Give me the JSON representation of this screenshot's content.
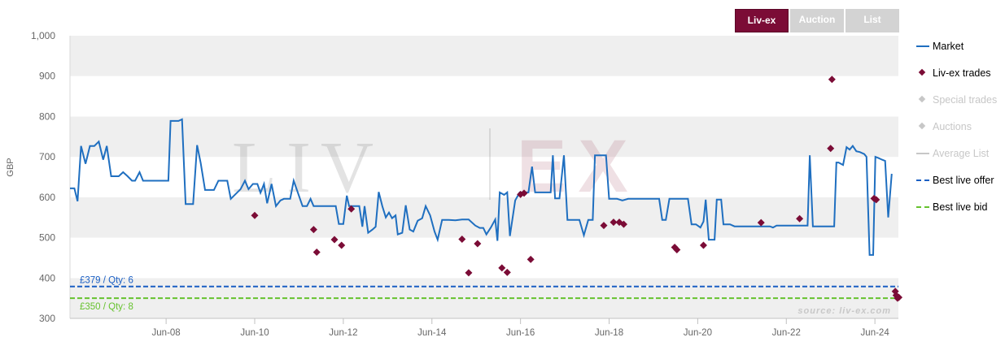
{
  "tabs": [
    {
      "label": "Liv-ex",
      "active": true
    },
    {
      "label": "Auction",
      "active": false
    },
    {
      "label": "List",
      "active": false
    }
  ],
  "watermark": {
    "text_left": "LIV",
    "text_right": "EX"
  },
  "source_label": "source: liv-ex.com",
  "colors": {
    "market": "#1f6fc0",
    "trades": "#7b0c36",
    "offer": "#1a5fc4",
    "bid": "#66c22e",
    "band": "#efefef",
    "hidden": "#c7c7c7"
  },
  "legend": [
    {
      "label": "Market",
      "symbol": "line",
      "color": "#1f6fc0",
      "visible": true
    },
    {
      "label": "Liv-ex trades",
      "symbol": "diamond",
      "color": "#7b0c36",
      "visible": true
    },
    {
      "label": "Special trades",
      "symbol": "diamond",
      "color": "#c7c7c7",
      "visible": false
    },
    {
      "label": "Auctions",
      "symbol": "diamond",
      "color": "#c7c7c7",
      "visible": false
    },
    {
      "label": "Average List",
      "symbol": "line",
      "color": "#c7c7c7",
      "visible": false
    },
    {
      "label": "Best live offer",
      "symbol": "dash",
      "color": "#1a5fc4",
      "visible": true
    },
    {
      "label": "Best live bid",
      "symbol": "dash",
      "color": "#66c22e",
      "visible": true
    }
  ],
  "chart_data": {
    "type": "line",
    "ylabel": "GBP",
    "ylim": [
      300,
      1000
    ],
    "xlim": [
      2006.25,
      2024.95
    ],
    "yticks": [
      300,
      400,
      500,
      600,
      700,
      800,
      900,
      1000
    ],
    "ytick_labels": [
      "300",
      "400",
      "500",
      "600",
      "700",
      "800",
      "900",
      "1,000"
    ],
    "xticks": [
      {
        "label": "Jun-08",
        "value": 2008.42
      },
      {
        "label": "Jun-10",
        "value": 2010.42
      },
      {
        "label": "Jun-12",
        "value": 2012.42
      },
      {
        "label": "Jun-14",
        "value": 2014.42
      },
      {
        "label": "Jun-16",
        "value": 2016.42
      },
      {
        "label": "Jun-18",
        "value": 2018.42
      },
      {
        "label": "Jun-20",
        "value": 2020.42
      },
      {
        "label": "Jun-22",
        "value": 2022.42
      },
      {
        "label": "Jun-24",
        "value": 2024.42
      }
    ],
    "grid": "alternating-bands",
    "legend_position": "right",
    "market": [
      [
        2006.25,
        622
      ],
      [
        2006.35,
        622
      ],
      [
        2006.42,
        590
      ],
      [
        2006.5,
        727
      ],
      [
        2006.6,
        683
      ],
      [
        2006.7,
        727
      ],
      [
        2006.8,
        727
      ],
      [
        2006.9,
        738
      ],
      [
        2007.0,
        693
      ],
      [
        2007.08,
        727
      ],
      [
        2007.18,
        652
      ],
      [
        2007.35,
        652
      ],
      [
        2007.45,
        662
      ],
      [
        2007.55,
        652
      ],
      [
        2007.65,
        641
      ],
      [
        2007.72,
        641
      ],
      [
        2007.82,
        662
      ],
      [
        2007.9,
        641
      ],
      [
        2008.1,
        641
      ],
      [
        2008.3,
        641
      ],
      [
        2008.47,
        641
      ],
      [
        2008.52,
        789
      ],
      [
        2008.7,
        789
      ],
      [
        2008.78,
        793
      ],
      [
        2008.86,
        583
      ],
      [
        2009.03,
        583
      ],
      [
        2009.12,
        729
      ],
      [
        2009.2,
        685
      ],
      [
        2009.3,
        618
      ],
      [
        2009.5,
        618
      ],
      [
        2009.6,
        641
      ],
      [
        2009.8,
        641
      ],
      [
        2009.88,
        596
      ],
      [
        2010.1,
        620
      ],
      [
        2010.2,
        641
      ],
      [
        2010.28,
        620
      ],
      [
        2010.38,
        633
      ],
      [
        2010.48,
        633
      ],
      [
        2010.55,
        611
      ],
      [
        2010.63,
        633
      ],
      [
        2010.7,
        585
      ],
      [
        2010.8,
        633
      ],
      [
        2010.9,
        578
      ],
      [
        2011.0,
        592
      ],
      [
        2011.08,
        596
      ],
      [
        2011.22,
        596
      ],
      [
        2011.3,
        641
      ],
      [
        2011.5,
        578
      ],
      [
        2011.6,
        578
      ],
      [
        2011.68,
        596
      ],
      [
        2011.75,
        578
      ],
      [
        2012.05,
        578
      ],
      [
        2012.25,
        578
      ],
      [
        2012.32,
        534
      ],
      [
        2012.42,
        534
      ],
      [
        2012.5,
        604
      ],
      [
        2012.55,
        578
      ],
      [
        2012.78,
        578
      ],
      [
        2012.85,
        527
      ],
      [
        2012.9,
        578
      ],
      [
        2012.98,
        512
      ],
      [
        2013.08,
        520
      ],
      [
        2013.15,
        527
      ],
      [
        2013.22,
        613
      ],
      [
        2013.3,
        578
      ],
      [
        2013.38,
        550
      ],
      [
        2013.45,
        562
      ],
      [
        2013.52,
        548
      ],
      [
        2013.6,
        555
      ],
      [
        2013.65,
        508
      ],
      [
        2013.75,
        512
      ],
      [
        2013.83,
        580
      ],
      [
        2013.92,
        520
      ],
      [
        2014.0,
        515
      ],
      [
        2014.1,
        542
      ],
      [
        2014.2,
        548
      ],
      [
        2014.28,
        578
      ],
      [
        2014.38,
        555
      ],
      [
        2014.48,
        515
      ],
      [
        2014.55,
        495
      ],
      [
        2014.65,
        544
      ],
      [
        2014.8,
        544
      ],
      [
        2014.95,
        543
      ],
      [
        2015.1,
        545
      ],
      [
        2015.25,
        545
      ],
      [
        2015.4,
        530
      ],
      [
        2015.5,
        524
      ],
      [
        2015.58,
        524
      ],
      [
        2015.65,
        508
      ],
      [
        2015.75,
        525
      ],
      [
        2015.85,
        545
      ],
      [
        2015.9,
        492
      ],
      [
        2015.95,
        612
      ],
      [
        2016.05,
        606
      ],
      [
        2016.12,
        612
      ],
      [
        2016.18,
        504
      ],
      [
        2016.3,
        592
      ],
      [
        2016.4,
        612
      ],
      [
        2016.6,
        612
      ],
      [
        2016.68,
        676
      ],
      [
        2016.75,
        612
      ],
      [
        2017.1,
        612
      ],
      [
        2017.15,
        704
      ],
      [
        2017.2,
        597
      ],
      [
        2017.3,
        597
      ],
      [
        2017.4,
        704
      ],
      [
        2017.48,
        544
      ],
      [
        2017.75,
        544
      ],
      [
        2017.85,
        506
      ],
      [
        2017.95,
        544
      ],
      [
        2018.05,
        544
      ],
      [
        2018.1,
        704
      ],
      [
        2018.35,
        704
      ],
      [
        2018.42,
        596
      ],
      [
        2018.6,
        596
      ],
      [
        2018.72,
        592
      ],
      [
        2018.85,
        596
      ],
      [
        2019.55,
        596
      ],
      [
        2019.62,
        544
      ],
      [
        2019.7,
        544
      ],
      [
        2019.78,
        596
      ],
      [
        2020.2,
        596
      ],
      [
        2020.28,
        533
      ],
      [
        2020.38,
        533
      ],
      [
        2020.48,
        525
      ],
      [
        2020.55,
        540
      ],
      [
        2020.6,
        594
      ],
      [
        2020.67,
        495
      ],
      [
        2020.8,
        495
      ],
      [
        2020.85,
        594
      ],
      [
        2020.95,
        594
      ],
      [
        2021.0,
        533
      ],
      [
        2021.15,
        533
      ],
      [
        2021.25,
        528
      ],
      [
        2021.5,
        528
      ],
      [
        2021.8,
        528
      ],
      [
        2022.05,
        528
      ],
      [
        2022.12,
        525
      ],
      [
        2022.2,
        530
      ],
      [
        2022.7,
        530
      ],
      [
        2022.9,
        530
      ],
      [
        2022.95,
        704
      ],
      [
        2023.02,
        528
      ],
      [
        2023.25,
        528
      ],
      [
        2023.5,
        528
      ],
      [
        2023.55,
        686
      ],
      [
        2023.6,
        686
      ],
      [
        2023.7,
        680
      ],
      [
        2023.78,
        724
      ],
      [
        2023.85,
        718
      ],
      [
        2023.92,
        727
      ],
      [
        2024.0,
        714
      ],
      [
        2024.08,
        712
      ],
      [
        2024.18,
        707
      ],
      [
        2024.23,
        700
      ],
      [
        2024.3,
        457
      ],
      [
        2024.38,
        457
      ],
      [
        2024.43,
        700
      ],
      [
        2024.5,
        697
      ],
      [
        2024.58,
        693
      ],
      [
        2024.65,
        690
      ],
      [
        2024.72,
        550
      ],
      [
        2024.8,
        658
      ]
    ],
    "trades": [
      [
        2010.42,
        555
      ],
      [
        2011.75,
        520
      ],
      [
        2011.82,
        464
      ],
      [
        2012.22,
        495
      ],
      [
        2012.38,
        481
      ],
      [
        2012.6,
        571
      ],
      [
        2015.1,
        496
      ],
      [
        2015.25,
        413
      ],
      [
        2015.45,
        485
      ],
      [
        2016.0,
        425
      ],
      [
        2016.12,
        414
      ],
      [
        2016.42,
        607
      ],
      [
        2016.5,
        610
      ],
      [
        2016.65,
        446
      ],
      [
        2018.3,
        530
      ],
      [
        2018.52,
        538
      ],
      [
        2018.65,
        538
      ],
      [
        2018.75,
        533
      ],
      [
        2019.9,
        476
      ],
      [
        2019.95,
        470
      ],
      [
        2020.55,
        481
      ],
      [
        2021.85,
        537
      ],
      [
        2022.72,
        547
      ],
      [
        2023.45,
        892
      ],
      [
        2023.42,
        721
      ],
      [
        2024.4,
        597
      ],
      [
        2024.45,
        594
      ],
      [
        2024.88,
        367
      ],
      [
        2024.9,
        357
      ],
      [
        2024.93,
        350
      ],
      [
        2024.96,
        352
      ]
    ],
    "best_offer": {
      "value": 379,
      "label": "£379 / Qty: 6"
    },
    "best_bid": {
      "value": 350,
      "label": "£350 / Qty: 8"
    }
  }
}
